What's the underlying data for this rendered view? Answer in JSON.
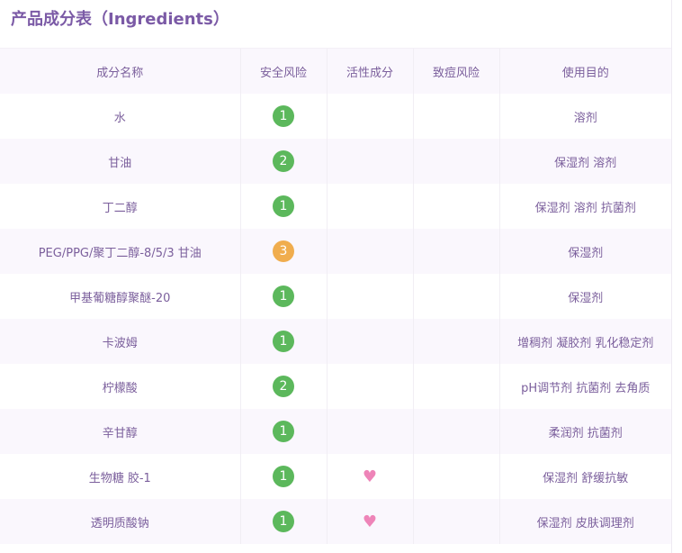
{
  "title": "产品成分表（Ingredients）",
  "colors": {
    "risk_1": "#5cb85c",
    "risk_2": "#5cb85c",
    "risk_3": "#f0ad4e",
    "heart": "#ee84b8",
    "text": "#7b5f9c"
  },
  "columns": [
    "成分名称",
    "安全风险",
    "活性成分",
    "致痘风险",
    "使用目的"
  ],
  "rows": [
    {
      "name": "水",
      "risk": "1",
      "active": false,
      "acne": "",
      "purpose": "溶剂"
    },
    {
      "name": "甘油",
      "risk": "2",
      "active": false,
      "acne": "",
      "purpose": "保湿剂 溶剂"
    },
    {
      "name": "丁二醇",
      "risk": "1",
      "active": false,
      "acne": "",
      "purpose": "保湿剂 溶剂 抗菌剂"
    },
    {
      "name": "PEG/PPG/聚丁二醇-8/5/3 甘油",
      "risk": "3",
      "active": false,
      "acne": "",
      "purpose": "保湿剂"
    },
    {
      "name": "甲基葡糖醇聚醚-20",
      "risk": "1",
      "active": false,
      "acne": "",
      "purpose": "保湿剂"
    },
    {
      "name": "卡波姆",
      "risk": "1",
      "active": false,
      "acne": "",
      "purpose": "增稠剂 凝胶剂 乳化稳定剂"
    },
    {
      "name": "柠檬酸",
      "risk": "2",
      "active": false,
      "acne": "",
      "purpose": "pH调节剂 抗菌剂 去角质"
    },
    {
      "name": "辛甘醇",
      "risk": "1",
      "active": false,
      "acne": "",
      "purpose": "柔润剂 抗菌剂"
    },
    {
      "name": "生物糖 胶-1",
      "risk": "1",
      "active": true,
      "acne": "",
      "purpose": "保湿剂 舒缓抗敏"
    },
    {
      "name": "透明质酸钠",
      "risk": "1",
      "active": true,
      "acne": "",
      "purpose": "保湿剂 皮肤调理剂"
    }
  ]
}
